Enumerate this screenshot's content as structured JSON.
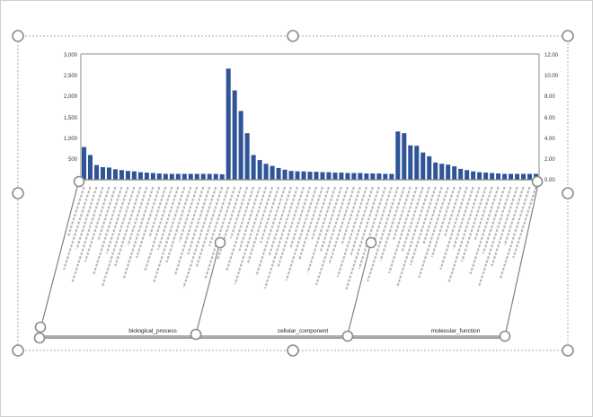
{
  "chart_data": {
    "type": "bar",
    "y_left_ticks": [
      "3,000",
      "2,500",
      "2,000",
      "1,500",
      "1,000",
      "500",
      ""
    ],
    "y_right_ticks": [
      "12.00",
      "10.00",
      "8.00",
      "6.00",
      "4.00",
      "2.00",
      "0.00"
    ],
    "ylim_left": [
      0,
      3000
    ],
    "ylim_right": [
      0,
      12
    ],
    "bar_color": "#2f5597",
    "grid": false,
    "groups": [
      {
        "name": "biological_process",
        "values": [
          780,
          590,
          350,
          300,
          290,
          250,
          230,
          210,
          200,
          180,
          170,
          160,
          150,
          140,
          140,
          140,
          140,
          140,
          140,
          140,
          140,
          140,
          130
        ]
      },
      {
        "name": "cellular_component",
        "values": [
          2650,
          2130,
          1640,
          1110,
          590,
          470,
          380,
          330,
          280,
          240,
          210,
          200,
          200,
          190,
          190,
          180,
          180,
          170,
          170,
          160,
          160,
          160,
          150,
          150,
          150,
          140,
          140
        ]
      },
      {
        "name": "molecular_function",
        "values": [
          1150,
          1110,
          820,
          810,
          650,
          560,
          410,
          380,
          360,
          320,
          260,
          230,
          200,
          180,
          170,
          160,
          150,
          140,
          140,
          140,
          140,
          140,
          140
        ]
      }
    ]
  },
  "ui": {
    "selection_border_color": "#aaaaaa",
    "handle_color": "#888888"
  }
}
